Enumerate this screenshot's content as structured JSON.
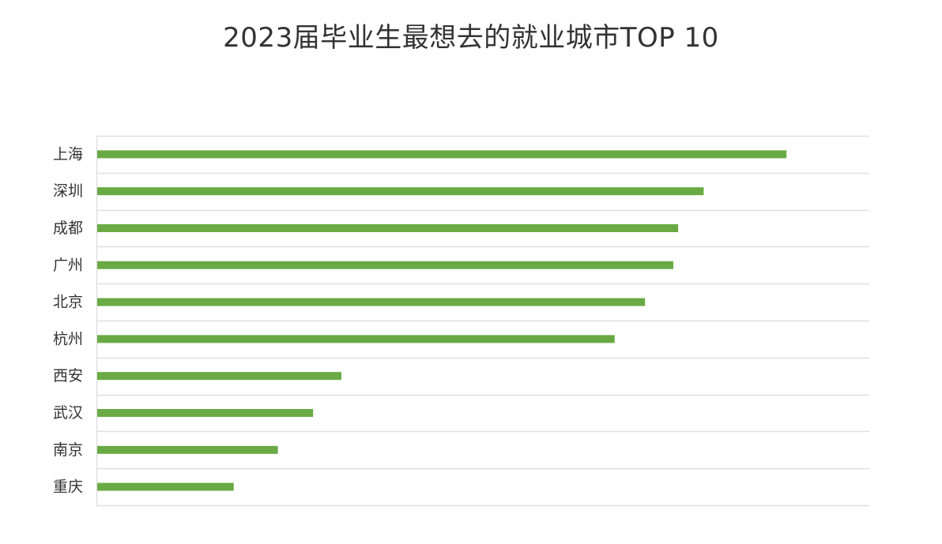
{
  "chart_data": {
    "type": "bar",
    "orientation": "horizontal",
    "title": "2023届毕业生最想去的就业城市TOP 10",
    "categories": [
      "上海",
      "深圳",
      "成都",
      "广州",
      "北京",
      "杭州",
      "西安",
      "武汉",
      "南京",
      "重庆"
    ],
    "values": [
      100,
      88,
      84.3,
      83.6,
      79.5,
      75.1,
      35.5,
      31.4,
      26.3,
      19.9
    ],
    "xlim": [
      0,
      112
    ],
    "xlabel": "",
    "ylabel": "",
    "grid": true,
    "legend": "none",
    "bar_color": "#6aaa45",
    "grid_color": "#e0e0e0"
  }
}
